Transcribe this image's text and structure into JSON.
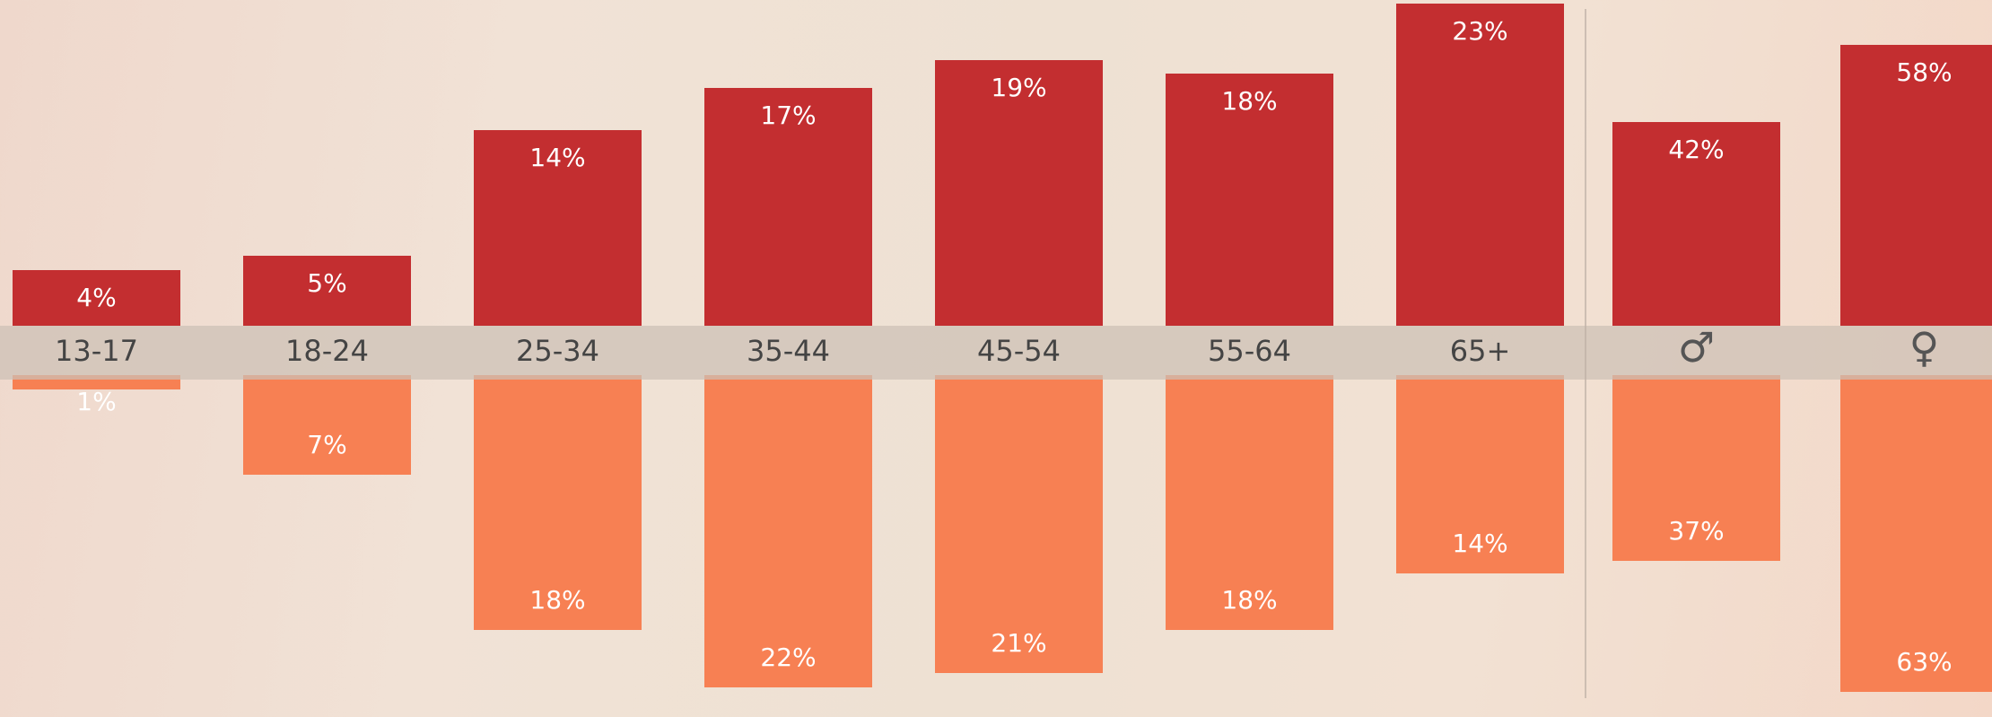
{
  "chart_data": {
    "type": "bar",
    "categories": [
      "13-17",
      "18-24",
      "25-34",
      "35-44",
      "45-54",
      "55-64",
      "65+",
      "♂",
      "♀"
    ],
    "series": [
      {
        "values": [
          4,
          5,
          14,
          17,
          19,
          18,
          23,
          42,
          58
        ],
        "labels": [
          "4%",
          "5%",
          "14%",
          "17%",
          "19%",
          "18%",
          "23%",
          "42%",
          "58%"
        ],
        "color": "#c32e30",
        "direction": "up"
      },
      {
        "values": [
          1,
          7,
          18,
          22,
          21,
          18,
          14,
          37,
          63
        ],
        "labels": [
          "1%",
          "7%",
          "18%",
          "22%",
          "21%",
          "18%",
          "14%",
          "37%",
          "63%"
        ],
        "color": "#f78053",
        "direction": "down"
      }
    ],
    "category_band_color": "#cdc0b6"
  }
}
